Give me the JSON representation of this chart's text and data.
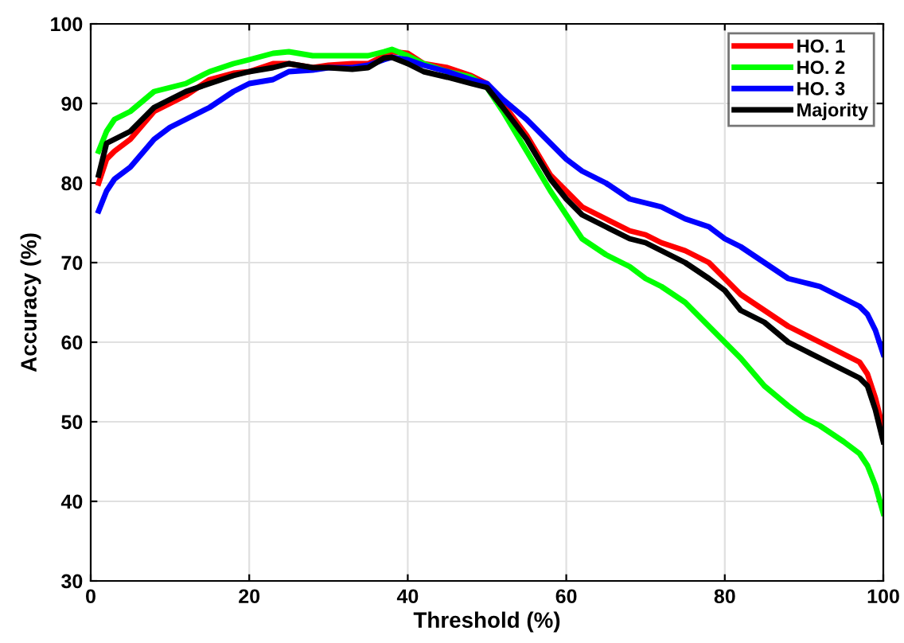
{
  "chart_data": {
    "type": "line",
    "xlabel": "Threshold (%)",
    "ylabel": "Accuracy (%)",
    "x": [
      1,
      2,
      3,
      5,
      8,
      10,
      12,
      15,
      18,
      20,
      23,
      25,
      28,
      30,
      33,
      35,
      37,
      38,
      40,
      42,
      45,
      48,
      50,
      52,
      55,
      58,
      60,
      62,
      65,
      68,
      70,
      72,
      75,
      78,
      80,
      82,
      85,
      88,
      90,
      92,
      95,
      97,
      98,
      99,
      100
    ],
    "series": [
      {
        "name": "HO. 1",
        "color": "#ff0000",
        "values": [
          80,
          83,
          84,
          85.5,
          89,
          90,
          91,
          93,
          93.8,
          94,
          95,
          95,
          94.5,
          94.8,
          95,
          95,
          96,
          96.5,
          96.3,
          95,
          94.5,
          93.5,
          92.5,
          90,
          86,
          81,
          79,
          77,
          75.5,
          74,
          73.5,
          72.5,
          71.5,
          70,
          68,
          66,
          64,
          62,
          61,
          60,
          58.5,
          57.5,
          56,
          53,
          49
        ]
      },
      {
        "name": "HO. 2",
        "color": "#00ff00",
        "values": [
          84,
          86.5,
          88,
          89,
          91.5,
          92,
          92.5,
          94,
          95,
          95.5,
          96.3,
          96.5,
          96,
          96,
          96,
          96,
          96.5,
          96.8,
          96,
          95,
          94,
          93.3,
          92,
          89,
          84,
          79,
          76,
          73,
          71,
          69.5,
          68,
          67,
          65,
          62,
          60,
          58,
          54.5,
          52,
          50.5,
          49.5,
          47.5,
          46,
          44.5,
          42,
          38.5
        ]
      },
      {
        "name": "HO. 3",
        "color": "#0000ff",
        "values": [
          76.5,
          79,
          80.5,
          82,
          85.5,
          87,
          88,
          89.5,
          91.5,
          92.5,
          93,
          94,
          94.2,
          94.5,
          94.5,
          94.8,
          95.5,
          95.8,
          95.5,
          94.8,
          94,
          93,
          92.5,
          90.5,
          88,
          85,
          83,
          81.5,
          80,
          78,
          77.5,
          77,
          75.5,
          74.5,
          73,
          72,
          70,
          68,
          67.5,
          67,
          65.5,
          64.5,
          63.5,
          61.5,
          58.5
        ]
      },
      {
        "name": "Majority",
        "color": "#000000",
        "values": [
          81,
          85,
          85.5,
          86.5,
          89.5,
          90.5,
          91.5,
          92.5,
          93.5,
          94,
          94.5,
          95,
          94.5,
          94.5,
          94.3,
          94.5,
          95.7,
          95.8,
          95,
          94,
          93.3,
          92.5,
          92,
          89.5,
          85.5,
          80.5,
          78,
          76,
          74.5,
          73,
          72.5,
          71.5,
          70,
          68,
          66.5,
          64,
          62.5,
          60,
          59,
          58,
          56.5,
          55.5,
          54.5,
          51.5,
          47.5
        ]
      }
    ],
    "xlim": [
      0,
      100
    ],
    "xticks": [
      0,
      20,
      40,
      60,
      80,
      100
    ],
    "ylim": [
      30,
      100
    ],
    "yticks": [
      30,
      40,
      50,
      60,
      70,
      80,
      90,
      100
    ],
    "grid": true,
    "legend": "top right",
    "marker": "none",
    "line_style": "solid"
  }
}
